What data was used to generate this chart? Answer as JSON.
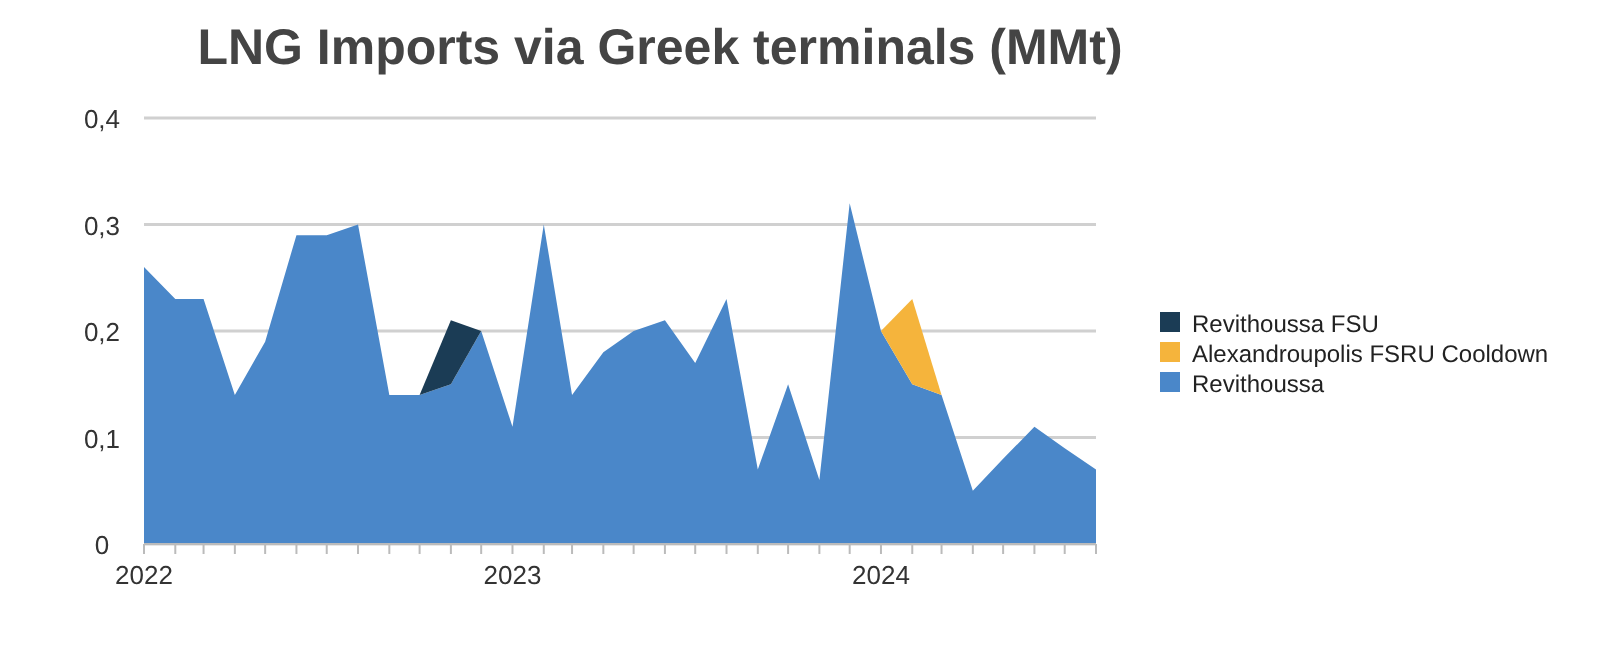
{
  "chart_data": {
    "type": "area",
    "stacked": true,
    "title": "LNG Imports via Greek terminals (MMt)",
    "x": [
      "2022-01",
      "2022-02",
      "2022-03",
      "2022-04",
      "2022-05",
      "2022-06",
      "2022-07",
      "2022-08",
      "2022-09",
      "2022-10",
      "2022-11",
      "2022-12",
      "2023-01",
      "2023-02",
      "2023-03",
      "2023-04",
      "2023-05",
      "2023-06",
      "2023-07",
      "2023-08",
      "2023-09",
      "2023-10",
      "2023-11",
      "2023-12",
      "2024-01",
      "2024-02",
      "2024-03",
      "2024-04",
      "2024-05",
      "2024-06",
      "2024-07",
      "2024-08"
    ],
    "series": [
      {
        "name": "Revithoussa",
        "color": "#4a87c9",
        "values": [
          0.26,
          0.23,
          0.23,
          0.14,
          0.19,
          0.29,
          0.29,
          0.3,
          0.14,
          0.14,
          0.15,
          0.2,
          0.11,
          0.3,
          0.14,
          0.18,
          0.2,
          0.21,
          0.17,
          0.23,
          0.07,
          0.15,
          0.06,
          0.32,
          0.2,
          0.15,
          0.14,
          0.05,
          0.08,
          0.11,
          0.09,
          0.07
        ]
      },
      {
        "name": "Alexandroupolis FSRU Cooldown",
        "color": "#f5b43c",
        "values": [
          null,
          null,
          null,
          null,
          null,
          null,
          null,
          null,
          null,
          null,
          null,
          null,
          null,
          null,
          null,
          null,
          null,
          null,
          null,
          null,
          null,
          null,
          null,
          null,
          0,
          0.08,
          0,
          null,
          null,
          null,
          null,
          null
        ]
      },
      {
        "name": "Revithoussa FSU",
        "color": "#1b3c55",
        "values": [
          null,
          null,
          null,
          null,
          null,
          null,
          null,
          null,
          null,
          0,
          0.06,
          0,
          null,
          null,
          null,
          null,
          null,
          null,
          null,
          null,
          null,
          null,
          null,
          null,
          null,
          null,
          null,
          null,
          null,
          null,
          null,
          null
        ]
      }
    ],
    "ylim": [
      0,
      0.4
    ],
    "yticks": [
      0,
      {
        "value": 0.1,
        "label": "0,1"
      },
      {
        "value": 0.2,
        "label": "0,2"
      },
      {
        "value": 0.3,
        "label": "0,3"
      },
      {
        "value": 0.4,
        "label": "0,4"
      }
    ],
    "xlim": [
      "2022-01",
      "2024-08"
    ],
    "xticks": [
      {
        "value": "2022-01",
        "label": "2022"
      },
      {
        "value": "2022-02",
        "label": null
      },
      {
        "value": "2022-03",
        "label": null
      },
      {
        "value": "2022-04",
        "label": null
      },
      {
        "value": "2022-05",
        "label": null
      },
      {
        "value": "2022-06",
        "label": null
      },
      {
        "value": "2022-07",
        "label": null
      },
      {
        "value": "2022-08",
        "label": null
      },
      {
        "value": "2022-09",
        "label": null
      },
      {
        "value": "2022-10",
        "label": null
      },
      {
        "value": "2022-11",
        "label": null
      },
      {
        "value": "2022-12",
        "label": null
      },
      {
        "value": "2023-01",
        "label": "2023"
      },
      {
        "value": "2023-02",
        "label": null
      },
      {
        "value": "2023-03",
        "label": null
      },
      {
        "value": "2023-04",
        "label": null
      },
      {
        "value": "2023-05",
        "label": null
      },
      {
        "value": "2023-06",
        "label": null
      },
      {
        "value": "2023-07",
        "label": null
      },
      {
        "value": "2023-08",
        "label": null
      },
      {
        "value": "2023-09",
        "label": null
      },
      {
        "value": "2023-10",
        "label": null
      },
      {
        "value": "2023-11",
        "label": null
      },
      {
        "value": "2023-12",
        "label": null
      },
      {
        "value": "2024-01",
        "label": "2024"
      },
      {
        "value": "2024-02",
        "label": null
      },
      {
        "value": "2024-03",
        "label": null
      },
      {
        "value": "2024-04",
        "label": null
      },
      {
        "value": "2024-05",
        "label": null
      },
      {
        "value": "2024-06",
        "label": null
      },
      {
        "value": "2024-07",
        "label": null
      },
      {
        "value": "2024-08",
        "label": null
      }
    ],
    "grid": "y",
    "legend": "right"
  }
}
